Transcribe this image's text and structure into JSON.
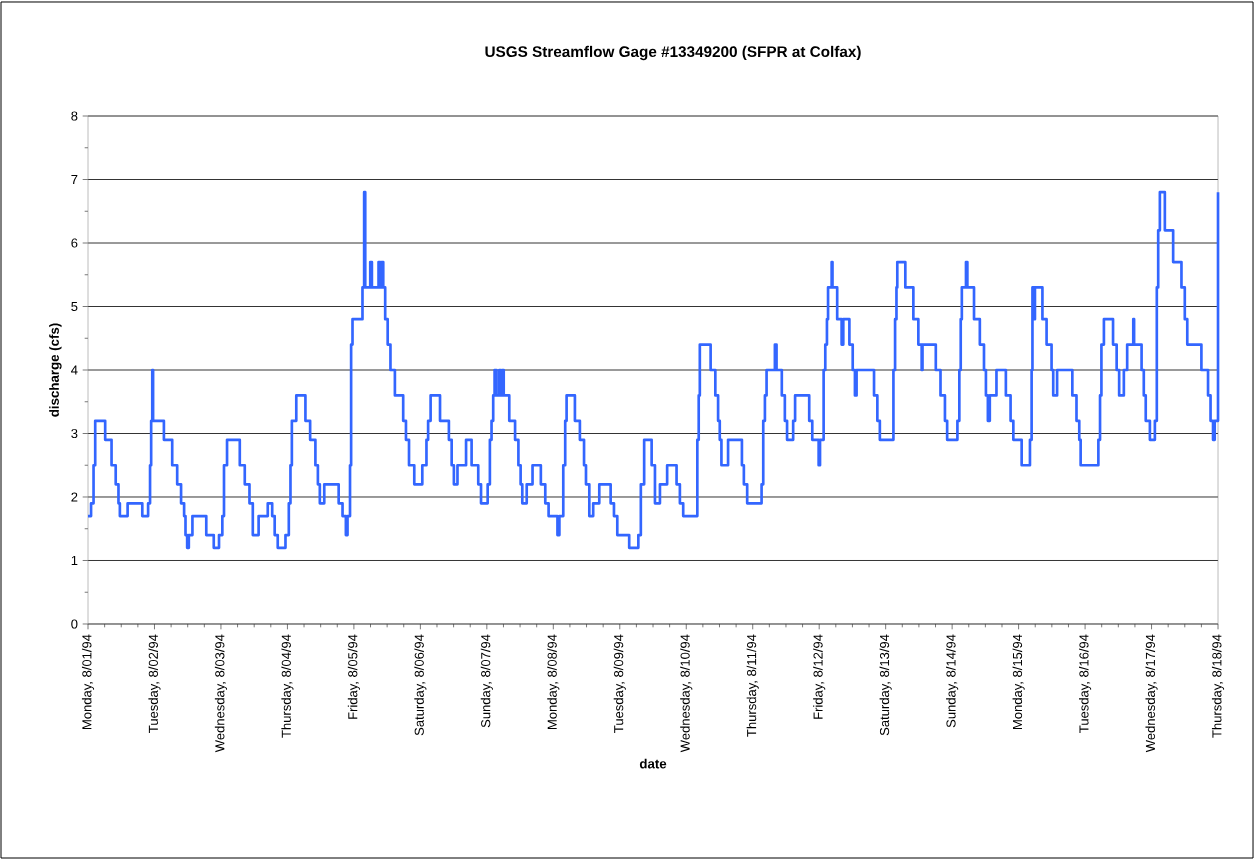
{
  "chart_data": {
    "type": "step",
    "title": "USGS Streamflow Gage #13349200 (SFPR at Colfax)",
    "xlabel": "date",
    "ylabel": "discharge (cfs)",
    "xlim": [
      "1994-08-01",
      "1994-08-18"
    ],
    "xticks": [
      {
        "value": "1994-08-01",
        "label": "Monday, 8/01/94"
      },
      {
        "value": "1994-08-02",
        "label": "Tuesday, 8/02/94"
      },
      {
        "value": "1994-08-03",
        "label": "Wednesday, 8/03/94"
      },
      {
        "value": "1994-08-04",
        "label": "Thursday, 8/04/94"
      },
      {
        "value": "1994-08-05",
        "label": "Friday, 8/05/94"
      },
      {
        "value": "1994-08-06",
        "label": "Saturday, 8/06/94"
      },
      {
        "value": "1994-08-07",
        "label": "Sunday, 8/07/94"
      },
      {
        "value": "1994-08-08",
        "label": "Monday, 8/08/94"
      },
      {
        "value": "1994-08-09",
        "label": "Tuesday, 8/09/94"
      },
      {
        "value": "1994-08-10",
        "label": "Wednesday, 8/10/94"
      },
      {
        "value": "1994-08-11",
        "label": "Thursday, 8/11/94"
      },
      {
        "value": "1994-08-12",
        "label": "Friday, 8/12/94"
      },
      {
        "value": "1994-08-13",
        "label": "Saturday, 8/13/94"
      },
      {
        "value": "1994-08-14",
        "label": "Sunday, 8/14/94"
      },
      {
        "value": "1994-08-15",
        "label": "Monday, 8/15/94"
      },
      {
        "value": "1994-08-16",
        "label": "Tuesday, 8/16/94"
      },
      {
        "value": "1994-08-17",
        "label": "Wednesday, 8/17/94"
      },
      {
        "value": "1994-08-18",
        "label": "Thursday, 8/18/94"
      }
    ],
    "ylim": [
      0,
      8
    ],
    "yticks": [
      0,
      1,
      2,
      3,
      4,
      5,
      6,
      7,
      8
    ],
    "grid": "y",
    "color": "#3366ff",
    "x": [
      "1994-08-01T00:00",
      "1994-08-01T01:06",
      "1994-08-01T02:00",
      "1994-08-01T02:36",
      "1994-08-01T06:12",
      "1994-08-01T08:30",
      "1994-08-01T10:00",
      "1994-08-01T11:00",
      "1994-08-01T11:30",
      "1994-08-01T14:18",
      "1994-08-01T19:36",
      "1994-08-01T21:42",
      "1994-08-01T22:24",
      "1994-08-01T22:48",
      "1994-08-01T23:12",
      "1994-08-01T23:30",
      "1994-08-02T03:24",
      "1994-08-02T06:24",
      "1994-08-02T08:12",
      "1994-08-02T09:36",
      "1994-08-02T10:42",
      "1994-08-02T11:12",
      "1994-08-02T11:48",
      "1994-08-02T12:24",
      "1994-08-02T13:42",
      "1994-08-02T18:42",
      "1994-08-02T21:24",
      "1994-08-02T23:18",
      "1994-08-03T00:30",
      "1994-08-03T01:06",
      "1994-08-03T02:12",
      "1994-08-03T06:48",
      "1994-08-03T08:36",
      "1994-08-03T10:18",
      "1994-08-03T11:30",
      "1994-08-03T13:36",
      "1994-08-03T16:54",
      "1994-08-03T18:30",
      "1994-08-03T19:24",
      "1994-08-03T20:30",
      "1994-08-03T23:18",
      "1994-08-04T00:30",
      "1994-08-04T01:06",
      "1994-08-04T01:36",
      "1994-08-04T03:12",
      "1994-08-04T06:30",
      "1994-08-04T08:12",
      "1994-08-04T10:06",
      "1994-08-04T11:00",
      "1994-08-04T11:42",
      "1994-08-04T13:18",
      "1994-08-04T18:30",
      "1994-08-04T19:54",
      "1994-08-04T21:06",
      "1994-08-04T21:42",
      "1994-08-04T22:36",
      "1994-08-04T23:00",
      "1994-08-04T23:30",
      "1994-08-05T03:06",
      "1994-08-05T03:42",
      "1994-08-05T04:06",
      "1994-08-05T05:54",
      "1994-08-05T06:30",
      "1994-08-05T08:54",
      "1994-08-05T09:30",
      "1994-08-05T10:00",
      "1994-08-05T10:36",
      "1994-08-05T11:18",
      "1994-08-05T12:12",
      "1994-08-05T13:12",
      "1994-08-05T14:48",
      "1994-08-05T17:48",
      "1994-08-05T18:48",
      "1994-08-05T19:54",
      "1994-08-05T21:48",
      "1994-08-06T00:42",
      "1994-08-06T02:12",
      "1994-08-06T02:48",
      "1994-08-06T03:42",
      "1994-08-06T07:06",
      "1994-08-06T10:18",
      "1994-08-06T11:18",
      "1994-08-06T12:06",
      "1994-08-06T13:24",
      "1994-08-06T16:30",
      "1994-08-06T18:30",
      "1994-08-06T20:54",
      "1994-08-06T21:54",
      "1994-08-07T00:18",
      "1994-08-07T01:06",
      "1994-08-07T01:42",
      "1994-08-07T02:18",
      "1994-08-07T02:48",
      "1994-08-07T03:30",
      "1994-08-07T04:30",
      "1994-08-07T05:00",
      "1994-08-07T05:30",
      "1994-08-07T06:06",
      "1994-08-07T08:06",
      "1994-08-07T10:12",
      "1994-08-07T11:24",
      "1994-08-07T12:12",
      "1994-08-07T12:48",
      "1994-08-07T14:24",
      "1994-08-07T16:30",
      "1994-08-07T19:30",
      "1994-08-07T21:06",
      "1994-08-07T22:18",
      "1994-08-08T01:30",
      "1994-08-08T02:12",
      "1994-08-08T03:36",
      "1994-08-08T04:18",
      "1994-08-08T04:48",
      "1994-08-08T07:48",
      "1994-08-08T09:36",
      "1994-08-08T11:06",
      "1994-08-08T11:48",
      "1994-08-08T13:00",
      "1994-08-08T14:24",
      "1994-08-08T16:36",
      "1994-08-08T20:42",
      "1994-08-08T21:54",
      "1994-08-08T23:06",
      "1994-08-09T03:24",
      "1994-08-09T06:42",
      "1994-08-09T07:36",
      "1994-08-09T08:48",
      "1994-08-09T11:30",
      "1994-08-09T12:42",
      "1994-08-09T14:30",
      "1994-08-09T17:06",
      "1994-08-09T20:30",
      "1994-08-09T21:42",
      "1994-08-09T22:54",
      "1994-08-10T04:00",
      "1994-08-10T04:30",
      "1994-08-10T04:54",
      "1994-08-10T08:48",
      "1994-08-10T10:30",
      "1994-08-10T11:30",
      "1994-08-10T12:06",
      "1994-08-10T12:42",
      "1994-08-10T15:06",
      "1994-08-10T20:06",
      "1994-08-10T20:48",
      "1994-08-10T22:00",
      "1994-08-11T03:12",
      "1994-08-11T03:48",
      "1994-08-11T04:24",
      "1994-08-11T05:00",
      "1994-08-11T08:00",
      "1994-08-11T08:36",
      "1994-08-11T10:30",
      "1994-08-11T11:36",
      "1994-08-11T12:24",
      "1994-08-11T14:36",
      "1994-08-11T15:18",
      "1994-08-11T20:24",
      "1994-08-11T21:30",
      "1994-08-11T23:48",
      "1994-08-12T00:18",
      "1994-08-12T01:36",
      "1994-08-12T02:12",
      "1994-08-12T02:48",
      "1994-08-12T03:12",
      "1994-08-12T04:30",
      "1994-08-12T04:48",
      "1994-08-12T06:30",
      "1994-08-12T08:06",
      "1994-08-12T08:42",
      "1994-08-12T10:54",
      "1994-08-12T12:06",
      "1994-08-12T12:54",
      "1994-08-12T13:30",
      "1994-08-12T19:48",
      "1994-08-12T21:00",
      "1994-08-12T21:54",
      "1994-08-13T02:48",
      "1994-08-13T03:24",
      "1994-08-13T03:54",
      "1994-08-13T04:12",
      "1994-08-13T07:06",
      "1994-08-13T10:00",
      "1994-08-13T11:48",
      "1994-08-13T13:00",
      "1994-08-13T13:18",
      "1994-08-13T18:06",
      "1994-08-13T19:48",
      "1994-08-13T21:24",
      "1994-08-13T22:12",
      "1994-08-14T01:54",
      "1994-08-14T02:36",
      "1994-08-14T03:06",
      "1994-08-14T03:30",
      "1994-08-14T05:00",
      "1994-08-14T05:30",
      "1994-08-14T07:54",
      "1994-08-14T10:00",
      "1994-08-14T11:30",
      "1994-08-14T12:12",
      "1994-08-14T12:54",
      "1994-08-14T13:36",
      "1994-08-14T16:00",
      "1994-08-14T19:24",
      "1994-08-14T21:06",
      "1994-08-14T22:06",
      "1994-08-15T01:06",
      "1994-08-15T04:06",
      "1994-08-15T04:42",
      "1994-08-15T05:00",
      "1994-08-15T05:30",
      "1994-08-15T05:54",
      "1994-08-15T08:36",
      "1994-08-15T10:06",
      "1994-08-15T11:54",
      "1994-08-15T12:30",
      "1994-08-15T13:54",
      "1994-08-15T19:24",
      "1994-08-15T20:54",
      "1994-08-15T21:54",
      "1994-08-15T22:24",
      "1994-08-16T04:48",
      "1994-08-16T05:24",
      "1994-08-16T05:54",
      "1994-08-16T06:48",
      "1994-08-16T10:06",
      "1994-08-16T11:24",
      "1994-08-16T12:18",
      "1994-08-16T14:00",
      "1994-08-16T15:12",
      "1994-08-16T17:24",
      "1994-08-16T17:42",
      "1994-08-16T20:24",
      "1994-08-16T21:12",
      "1994-08-16T21:54",
      "1994-08-16T23:24",
      "1994-08-17T01:12",
      "1994-08-17T01:54",
      "1994-08-17T02:24",
      "1994-08-17T03:00",
      "1994-08-17T04:48",
      "1994-08-17T07:48",
      "1994-08-17T10:48",
      "1994-08-17T12:00",
      "1994-08-17T12:54",
      "1994-08-17T18:00",
      "1994-08-17T20:24",
      "1994-08-17T21:18",
      "1994-08-17T22:12",
      "1994-08-17T22:48",
      "1994-08-18T00:00"
    ],
    "values": [
      1.7,
      1.9,
      2.5,
      3.2,
      2.9,
      2.5,
      2.2,
      1.9,
      1.7,
      1.9,
      1.7,
      1.9,
      2.5,
      3.2,
      4.0,
      3.2,
      2.9,
      2.5,
      2.2,
      1.9,
      1.7,
      1.4,
      1.2,
      1.4,
      1.7,
      1.4,
      1.2,
      1.4,
      1.7,
      2.5,
      2.9,
      2.5,
      2.2,
      1.9,
      1.4,
      1.7,
      1.9,
      1.7,
      1.4,
      1.2,
      1.4,
      1.9,
      2.5,
      3.2,
      3.6,
      3.2,
      2.9,
      2.5,
      2.2,
      1.9,
      2.2,
      1.9,
      1.7,
      1.4,
      1.7,
      2.5,
      4.4,
      4.8,
      5.3,
      6.8,
      5.3,
      5.7,
      5.3,
      5.7,
      5.3,
      5.7,
      5.3,
      4.8,
      4.4,
      4.0,
      3.6,
      3.2,
      2.9,
      2.5,
      2.2,
      2.5,
      2.9,
      3.2,
      3.6,
      3.2,
      2.9,
      2.5,
      2.2,
      2.5,
      2.9,
      2.5,
      2.2,
      1.9,
      2.2,
      2.9,
      3.2,
      3.6,
      4.0,
      3.6,
      4.0,
      3.6,
      4.0,
      3.6,
      3.2,
      2.9,
      2.5,
      2.2,
      1.9,
      2.2,
      2.5,
      2.2,
      1.9,
      1.7,
      1.4,
      1.7,
      2.5,
      3.2,
      3.6,
      3.2,
      2.9,
      2.5,
      2.2,
      1.7,
      1.9,
      2.2,
      1.9,
      1.7,
      1.4,
      1.2,
      1.4,
      2.2,
      2.9,
      2.5,
      1.9,
      2.2,
      2.5,
      2.2,
      1.9,
      1.7,
      2.9,
      3.6,
      4.4,
      4.0,
      3.6,
      3.2,
      2.9,
      2.5,
      2.9,
      2.5,
      2.2,
      1.9,
      2.2,
      3.2,
      3.6,
      4.0,
      4.4,
      4.0,
      3.6,
      3.2,
      2.9,
      3.2,
      3.6,
      3.2,
      2.9,
      2.5,
      2.9,
      4.0,
      4.4,
      4.8,
      5.3,
      5.7,
      5.3,
      4.8,
      4.4,
      4.8,
      4.4,
      4.0,
      3.6,
      4.0,
      3.6,
      3.2,
      2.9,
      4.0,
      4.8,
      5.3,
      5.7,
      5.3,
      4.8,
      4.4,
      4.0,
      4.4,
      4.0,
      3.6,
      3.2,
      2.9,
      3.2,
      4.0,
      4.8,
      5.3,
      5.7,
      5.3,
      4.8,
      4.4,
      4.0,
      3.6,
      3.2,
      3.6,
      4.0,
      3.6,
      3.2,
      2.9,
      2.5,
      2.9,
      4.0,
      5.3,
      4.8,
      5.3,
      4.8,
      4.4,
      4.0,
      3.6,
      4.0,
      3.6,
      3.2,
      2.9,
      2.5,
      2.9,
      3.6,
      4.4,
      4.8,
      4.4,
      4.0,
      3.6,
      4.0,
      4.4,
      4.8,
      4.4,
      4.0,
      3.6,
      3.2,
      2.9,
      3.2,
      5.3,
      6.2,
      6.8,
      6.2,
      5.7,
      5.3,
      4.8,
      4.4,
      4.0,
      3.6,
      3.2,
      2.9,
      3.2,
      6.8
    ]
  }
}
